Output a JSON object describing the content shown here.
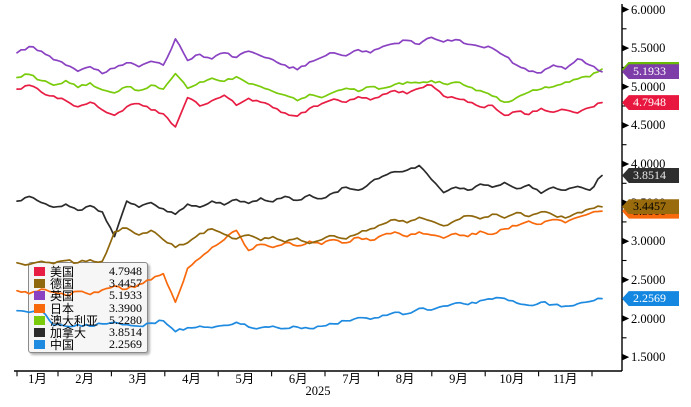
{
  "chart_data": {
    "type": "line",
    "title": "",
    "year_label": "2025",
    "x_labels": [
      "1月",
      "2月",
      "3月",
      "4月",
      "5月",
      "6月",
      "7月",
      "8月",
      "9月",
      "10月",
      "11月"
    ],
    "y_tick_labels": [
      "6.0000",
      "5.5000",
      "5.0000",
      "4.5000",
      "4.0000",
      "3.5000",
      "3.0000",
      "2.5000",
      "2.0000",
      "1.5000"
    ],
    "ylim": [
      1.32,
      6.06
    ],
    "grid": false,
    "legend_position": "bottom-left",
    "axis_color": "#000000",
    "series": [
      {
        "name": "美国",
        "value_label": "4.7948",
        "value": 4.7948,
        "color": "#e81d44",
        "badge_bg": "#e8173f",
        "badge_fg": "#ffffff",
        "points": [
          4.97,
          5.02,
          4.93,
          4.88,
          4.82,
          4.74,
          4.8,
          4.7,
          4.63,
          4.74,
          4.78,
          4.7,
          4.65,
          4.48,
          4.86,
          4.75,
          4.82,
          4.89,
          4.76,
          4.85,
          4.8,
          4.73,
          4.66,
          4.62,
          4.72,
          4.78,
          4.84,
          4.8,
          4.87,
          4.83,
          4.9,
          4.95,
          4.91,
          4.98,
          5.02,
          4.88,
          4.85,
          4.8,
          4.74,
          4.76,
          4.63,
          4.68,
          4.64,
          4.72,
          4.67,
          4.7,
          4.66,
          4.73,
          4.7948
        ]
      },
      {
        "name": "德国",
        "value_label": "3.4457",
        "value": 3.4457,
        "color": "#8f670c",
        "badge_bg": "#9a6b0c",
        "badge_fg": "#000000",
        "points": [
          2.72,
          2.7,
          2.74,
          2.71,
          2.75,
          2.72,
          2.76,
          2.74,
          3.12,
          3.17,
          3.08,
          3.14,
          3.02,
          2.92,
          2.98,
          3.1,
          3.16,
          3.09,
          3.03,
          3.08,
          3.01,
          3.06,
          2.99,
          3.04,
          2.97,
          3.02,
          3.07,
          3.03,
          3.1,
          3.16,
          3.22,
          3.28,
          3.24,
          3.31,
          3.26,
          3.2,
          3.27,
          3.33,
          3.29,
          3.35,
          3.3,
          3.37,
          3.32,
          3.38,
          3.34,
          3.3,
          3.37,
          3.42,
          3.4457
        ]
      },
      {
        "name": "英国",
        "value_label": "5.1933",
        "value": 5.1933,
        "color": "#8a42c2",
        "badge_bg": "#7d3ca8",
        "badge_fg": "#ffffff",
        "points": [
          5.44,
          5.52,
          5.46,
          5.35,
          5.28,
          5.2,
          5.26,
          5.17,
          5.24,
          5.31,
          5.26,
          5.33,
          5.28,
          5.62,
          5.34,
          5.42,
          5.36,
          5.44,
          5.38,
          5.46,
          5.4,
          5.35,
          5.28,
          5.22,
          5.32,
          5.38,
          5.44,
          5.4,
          5.48,
          5.44,
          5.52,
          5.56,
          5.6,
          5.55,
          5.64,
          5.58,
          5.61,
          5.55,
          5.52,
          5.5,
          5.4,
          5.28,
          5.2,
          5.18,
          5.28,
          5.23,
          5.36,
          5.28,
          5.1933
        ]
      },
      {
        "name": "日本",
        "value_label": "3.3900",
        "value": 3.39,
        "color": "#f8690c",
        "badge_bg": "#f8690c",
        "badge_fg": "#000000",
        "points": [
          2.36,
          2.32,
          2.38,
          2.34,
          2.3,
          2.35,
          2.31,
          2.37,
          2.42,
          2.38,
          2.44,
          2.5,
          2.58,
          2.21,
          2.65,
          2.78,
          2.92,
          3.02,
          3.14,
          2.88,
          2.96,
          2.92,
          2.98,
          2.94,
          3.0,
          2.96,
          3.02,
          2.98,
          3.05,
          3.01,
          3.08,
          3.12,
          3.06,
          3.12,
          3.08,
          3.04,
          3.1,
          3.06,
          3.13,
          3.09,
          3.16,
          3.2,
          3.26,
          3.22,
          3.28,
          3.24,
          3.31,
          3.36,
          3.39
        ]
      },
      {
        "name": "澳大利亚",
        "value_label": "5.2280",
        "value": 5.228,
        "color": "#79cb0b",
        "badge_bg": "#68bb07",
        "badge_fg": "#000000",
        "points": [
          5.12,
          5.16,
          5.08,
          5.02,
          5.08,
          4.99,
          5.05,
          4.96,
          4.92,
          5.0,
          4.95,
          5.02,
          4.97,
          5.17,
          4.98,
          5.06,
          5.11,
          5.07,
          5.13,
          5.04,
          5.0,
          4.94,
          4.89,
          4.82,
          4.9,
          4.86,
          4.93,
          4.98,
          4.94,
          5.0,
          4.98,
          5.03,
          5.06,
          5.05,
          5.08,
          5.04,
          5.06,
          5.0,
          4.95,
          4.88,
          4.8,
          4.86,
          4.93,
          4.97,
          5.0,
          5.06,
          5.1,
          5.13,
          5.228
        ]
      },
      {
        "name": "加拿大",
        "value_label": "3.8514",
        "value": 3.8514,
        "color": "#2b2b2b",
        "badge_bg": "#2e2e2e",
        "badge_fg": "#e9e9e9",
        "points": [
          3.52,
          3.58,
          3.5,
          3.44,
          3.48,
          3.4,
          3.46,
          3.38,
          3.06,
          3.52,
          3.44,
          3.5,
          3.42,
          3.35,
          3.48,
          3.44,
          3.52,
          3.47,
          3.54,
          3.49,
          3.56,
          3.51,
          3.58,
          3.53,
          3.6,
          3.55,
          3.63,
          3.7,
          3.66,
          3.76,
          3.84,
          3.9,
          3.92,
          3.98,
          3.8,
          3.63,
          3.7,
          3.66,
          3.74,
          3.7,
          3.76,
          3.68,
          3.73,
          3.62,
          3.7,
          3.66,
          3.71,
          3.66,
          3.8514
        ]
      },
      {
        "name": "中国",
        "value_label": "2.2569",
        "value": 2.2569,
        "color": "#1e8ae0",
        "badge_bg": "#1487e0",
        "badge_fg": "#ffffff",
        "points": [
          2.1,
          2.08,
          2.1,
          1.91,
          1.9,
          1.92,
          1.9,
          1.93,
          1.95,
          1.92,
          1.9,
          1.94,
          1.97,
          1.83,
          1.88,
          1.9,
          1.88,
          1.91,
          1.95,
          1.89,
          1.88,
          1.9,
          1.87,
          1.89,
          1.87,
          1.9,
          1.93,
          1.97,
          2.01,
          1.99,
          2.04,
          2.08,
          2.06,
          2.13,
          2.11,
          2.16,
          2.2,
          2.18,
          2.23,
          2.25,
          2.26,
          2.2,
          2.17,
          2.21,
          2.18,
          2.16,
          2.19,
          2.22,
          2.2569
        ]
      }
    ]
  }
}
